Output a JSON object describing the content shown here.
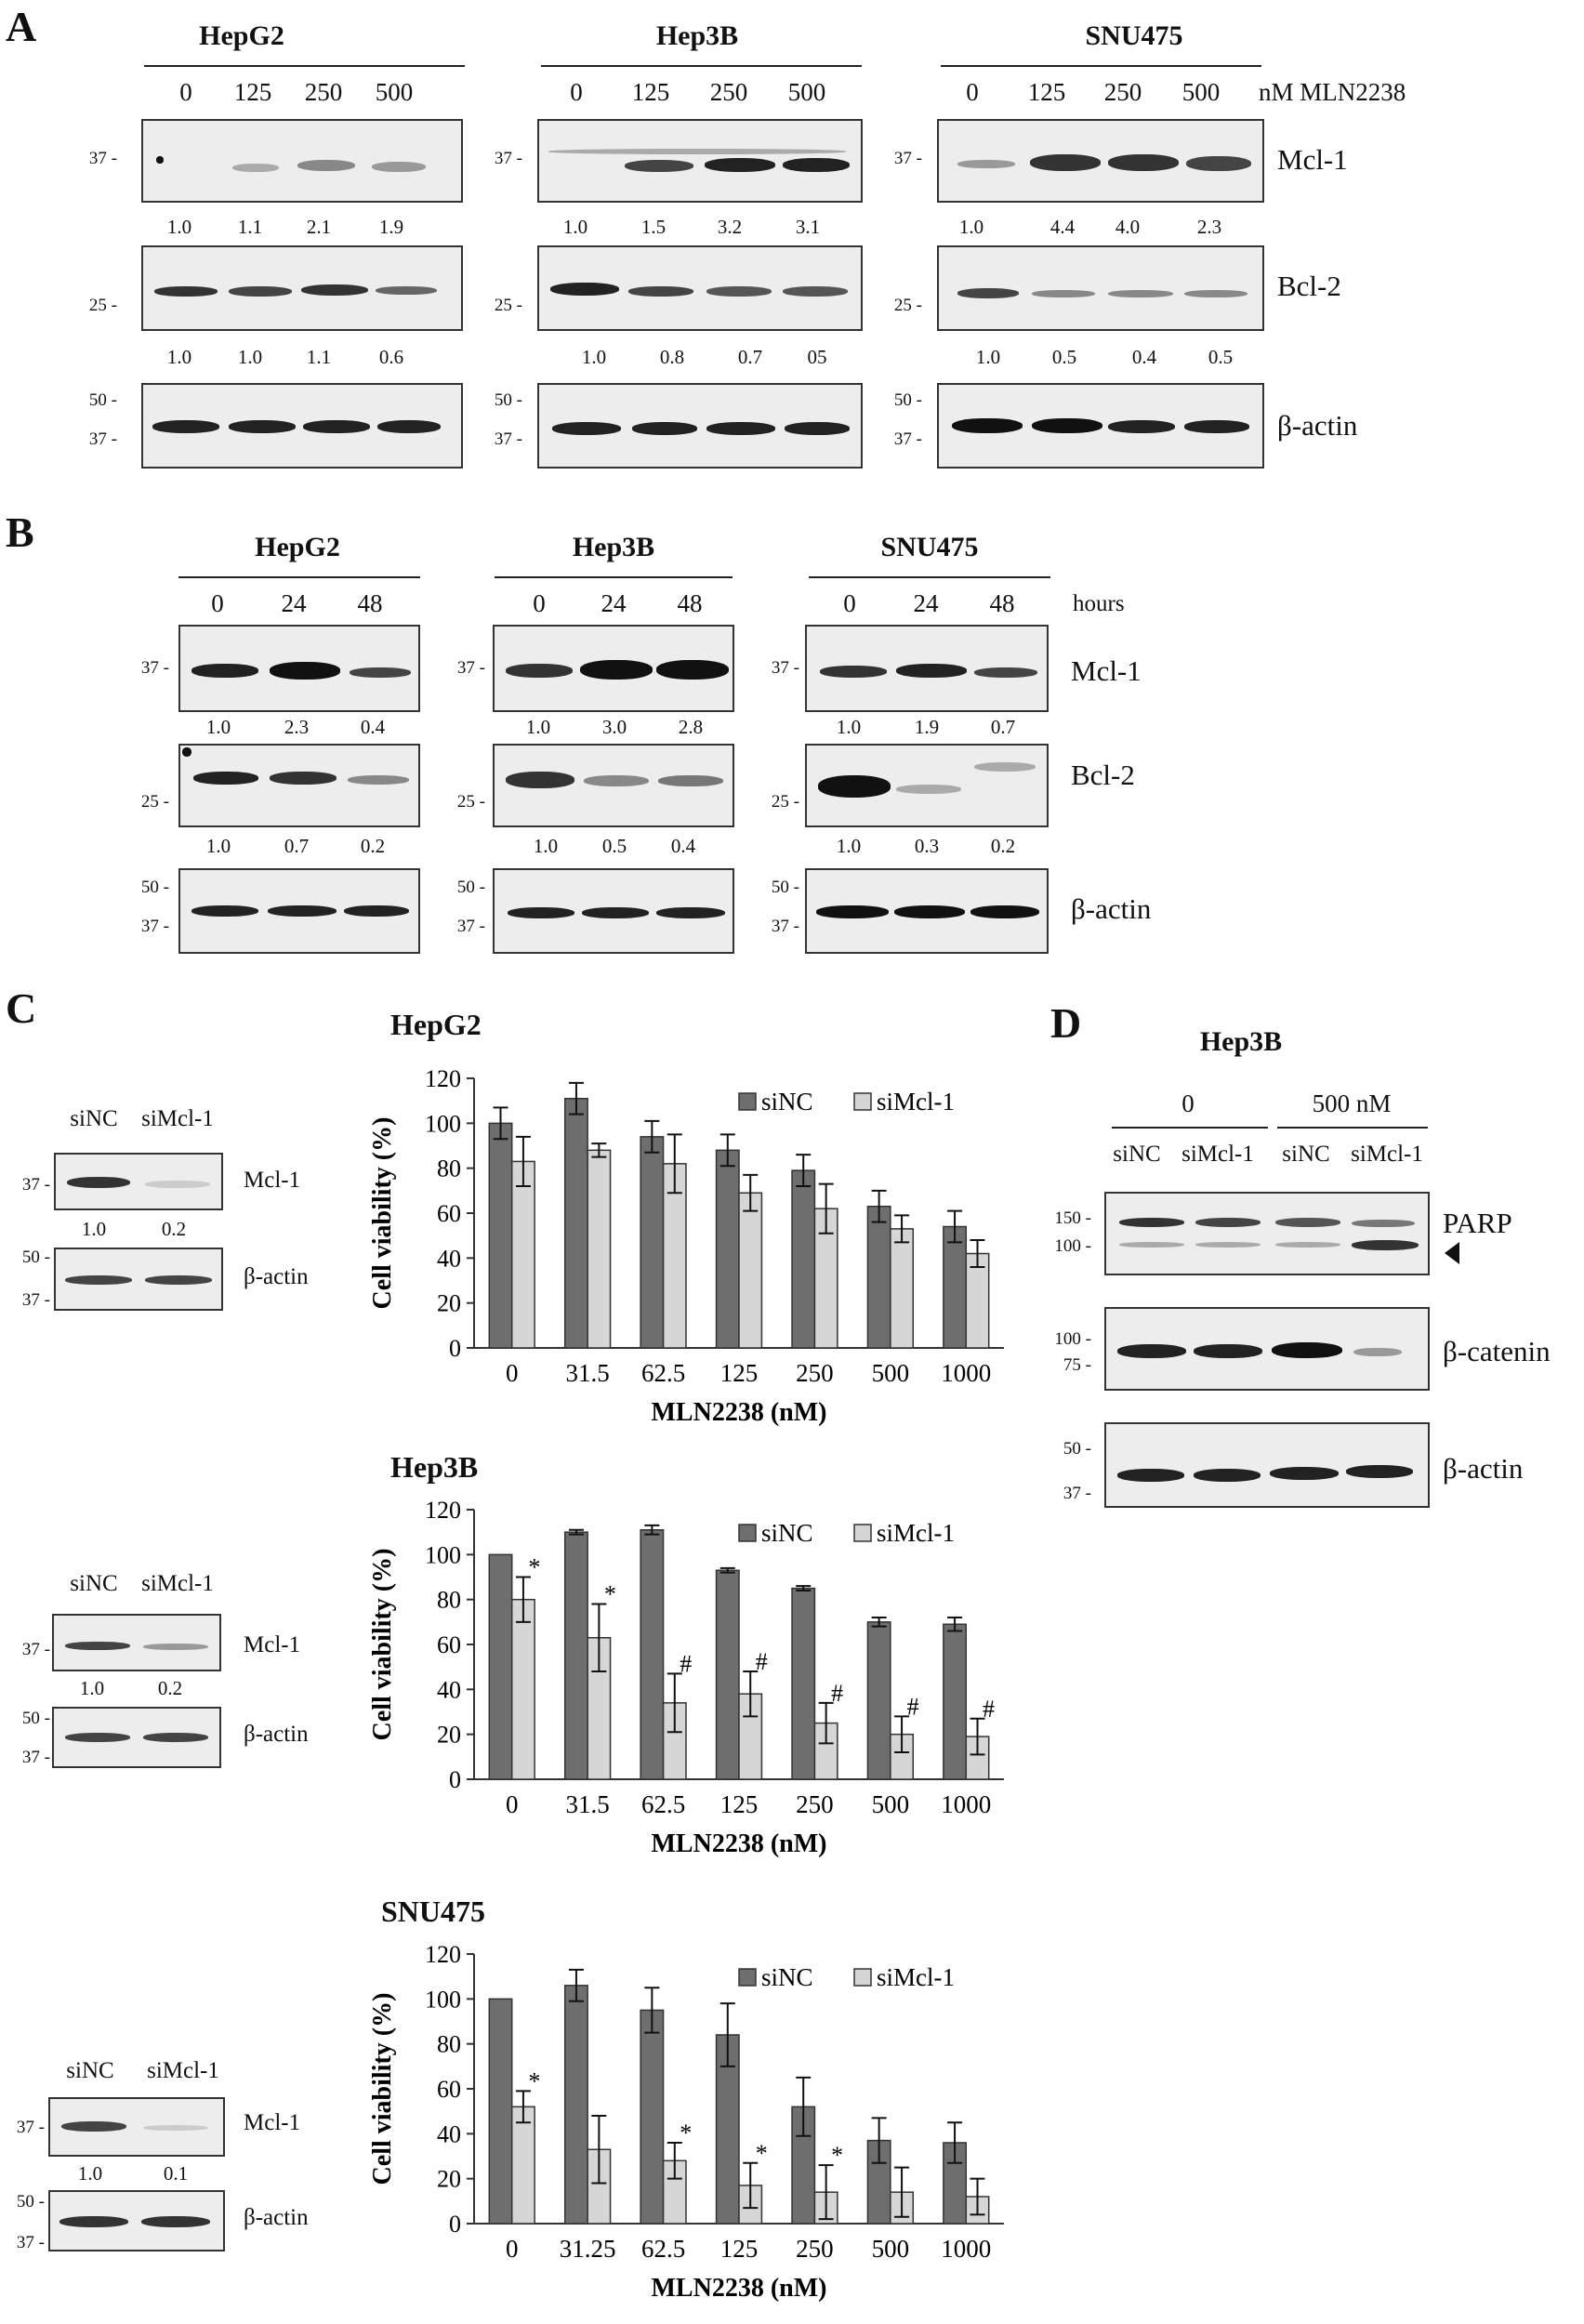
{
  "panels": {
    "A": "A",
    "B": "B",
    "C": "C",
    "D": "D"
  },
  "panelA": {
    "cells": [
      "HepG2",
      "Hep3B",
      "SNU475"
    ],
    "doses": [
      "0",
      "125",
      "250",
      "500"
    ],
    "dose_unit": "nM MLN2238",
    "mw": {
      "m37": "37 -",
      "m25": "25 -",
      "m50": "50 -"
    },
    "proteins": {
      "mcl1": "Mcl-1",
      "bcl2": "Bcl-2",
      "actin": "β-actin"
    },
    "mcl1_quant": [
      [
        "1.0",
        "1.1",
        "2.1",
        "1.9"
      ],
      [
        "1.0",
        "1.5",
        "3.2",
        "3.1"
      ],
      [
        "1.0",
        "4.4",
        "4.0",
        "2.3"
      ]
    ],
    "bcl2_quant": [
      [
        "1.0",
        "1.0",
        "1.1",
        "0.6"
      ],
      [
        "1.0",
        "0.8",
        "0.7",
        "05"
      ],
      [
        "1.0",
        "0.5",
        "0.4",
        "0.5"
      ]
    ]
  },
  "panelB": {
    "cells": [
      "HepG2",
      "Hep3B",
      "SNU475"
    ],
    "times": [
      "0",
      "24",
      "48"
    ],
    "time_unit": "hours",
    "proteins": {
      "mcl1": "Mcl-1",
      "bcl2": "Bcl-2",
      "actin": "β-actin"
    },
    "mcl1_quant": [
      [
        "1.0",
        "2.3",
        "0.4"
      ],
      [
        "1.0",
        "3.0",
        "2.8"
      ],
      [
        "1.0",
        "1.9",
        "0.7"
      ]
    ],
    "bcl2_quant": [
      [
        "1.0",
        "0.7",
        "0.2"
      ],
      [
        "1.0",
        "0.5",
        "0.4"
      ],
      [
        "1.0",
        "0.3",
        "0.2"
      ]
    ]
  },
  "panelC_blots": [
    {
      "lanes": [
        "siNC",
        "siMcl-1"
      ],
      "quant": [
        "1.0",
        "0.2"
      ]
    },
    {
      "lanes": [
        "siNC",
        "siMcl-1"
      ],
      "quant": [
        "1.0",
        "0.2"
      ]
    },
    {
      "lanes": [
        "siNC",
        "siMcl-1"
      ],
      "quant": [
        "1.0",
        "0.1"
      ]
    }
  ],
  "panelC_proteins": {
    "mcl1": "Mcl-1",
    "actin": "β-actin"
  },
  "panelD": {
    "title": "Hep3B",
    "groups": [
      "0",
      "500 nM"
    ],
    "lanes": [
      "siNC",
      "siMcl-1",
      "siNC",
      "siMcl-1"
    ],
    "proteins": {
      "parp": "PARP",
      "bcat": "β-catenin",
      "actin": "β-actin"
    },
    "mw": {
      "m150": "150 -",
      "m100": "100 -",
      "m75": "75 -",
      "m50": "50 -",
      "m37": "37 -"
    }
  },
  "chart_data": [
    {
      "type": "bar",
      "title": "HepG2",
      "xlabel": "MLN2238 (nM)",
      "ylabel": "Cell  viability (%)",
      "ylim": [
        0,
        120
      ],
      "categories": [
        "0",
        "31.5",
        "62.5",
        "125",
        "250",
        "500",
        "1000"
      ],
      "series": [
        {
          "name": "siNC",
          "values": [
            100,
            111,
            94,
            88,
            79,
            63,
            54
          ],
          "errors": [
            7,
            7,
            7,
            7,
            7,
            7,
            7
          ],
          "color": "#6e6e6e"
        },
        {
          "name": "siMcl-1",
          "values": [
            83,
            88,
            82,
            69,
            62,
            53,
            42
          ],
          "errors": [
            11,
            3,
            13,
            8,
            11,
            6,
            6
          ],
          "color": "#d6d6d6"
        }
      ],
      "annotations": []
    },
    {
      "type": "bar",
      "title": "Hep3B",
      "xlabel": "MLN2238 (nM)",
      "ylabel": "Cell viability (%)",
      "ylim": [
        0,
        120
      ],
      "categories": [
        "0",
        "31.5",
        "62.5",
        "125",
        "250",
        "500",
        "1000"
      ],
      "series": [
        {
          "name": "siNC",
          "values": [
            100,
            110,
            111,
            93,
            85,
            70,
            69
          ],
          "errors": [
            0,
            1,
            2,
            1,
            1,
            2,
            3
          ],
          "color": "#6e6e6e"
        },
        {
          "name": "siMcl-1",
          "values": [
            80,
            63,
            34,
            38,
            25,
            20,
            19
          ],
          "errors": [
            10,
            15,
            13,
            10,
            9,
            8,
            8
          ],
          "color": "#d6d6d6"
        }
      ],
      "annotations": [
        "*",
        "*",
        "#",
        "#",
        "#",
        "#",
        "#"
      ]
    },
    {
      "type": "bar",
      "title": "SNU475",
      "xlabel": "MLN2238 (nM)",
      "ylabel": "Cell viability (%)",
      "ylim": [
        0,
        120
      ],
      "categories": [
        "0",
        "31.25",
        "62.5",
        "125",
        "250",
        "500",
        "1000"
      ],
      "series": [
        {
          "name": "siNC",
          "values": [
            100,
            106,
            95,
            84,
            52,
            37,
            36
          ],
          "errors": [
            0,
            7,
            10,
            14,
            13,
            10,
            9
          ],
          "color": "#6e6e6e"
        },
        {
          "name": "siMcl-1",
          "values": [
            52,
            33,
            28,
            17,
            14,
            14,
            12
          ],
          "errors": [
            7,
            15,
            8,
            10,
            12,
            11,
            8
          ],
          "color": "#d6d6d6"
        }
      ],
      "annotations": [
        "*",
        "",
        "*",
        "*",
        "*",
        "",
        ""
      ]
    }
  ]
}
